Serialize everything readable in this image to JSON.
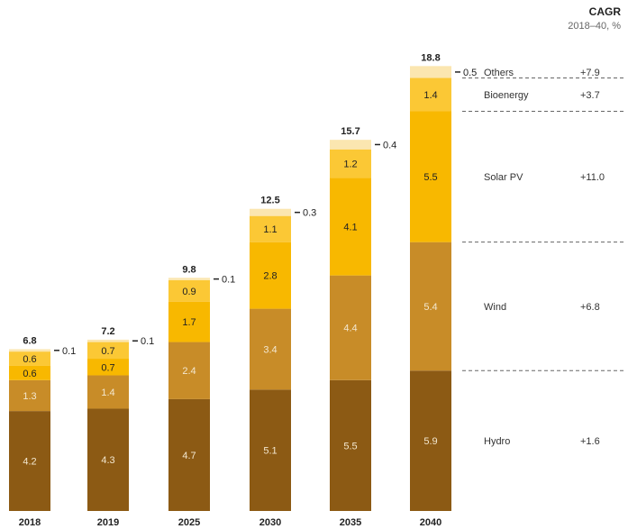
{
  "header": {
    "cagr_title": "CAGR",
    "cagr_subtitle": "2018–40, %"
  },
  "chart_data": {
    "type": "bar",
    "stacked": true,
    "categories": [
      "2018",
      "2019",
      "2025",
      "2030",
      "2035",
      "2040"
    ],
    "totals": [
      "6.8",
      "7.2",
      "9.8",
      "12.5",
      "15.7",
      "18.8"
    ],
    "series": [
      {
        "name": "Hydro",
        "color": "#8c5a14",
        "label_color": "#f3e7cf",
        "cagr": "+1.6",
        "values": [
          4.2,
          4.3,
          4.7,
          5.1,
          5.5,
          5.9
        ]
      },
      {
        "name": "Wind",
        "color": "#c88c28",
        "label_color": "#f3e7cf",
        "cagr": "+6.8",
        "values": [
          1.3,
          1.4,
          2.4,
          3.4,
          4.4,
          5.4
        ]
      },
      {
        "name": "Solar PV",
        "color": "#f8b800",
        "label_color": "#222222",
        "cagr": "+11.0",
        "values": [
          0.6,
          0.7,
          1.7,
          2.8,
          4.1,
          5.5
        ]
      },
      {
        "name": "Bioenergy",
        "color": "#fbc835",
        "label_color": "#222222",
        "cagr": "+3.7",
        "values": [
          0.6,
          0.7,
          0.9,
          1.1,
          1.2,
          1.4
        ]
      },
      {
        "name": "Others",
        "color": "#fbe6b0",
        "label_color": "#222222",
        "cagr": "+7.9",
        "values": [
          0.1,
          0.1,
          0.1,
          0.3,
          0.4,
          0.5
        ]
      }
    ]
  }
}
